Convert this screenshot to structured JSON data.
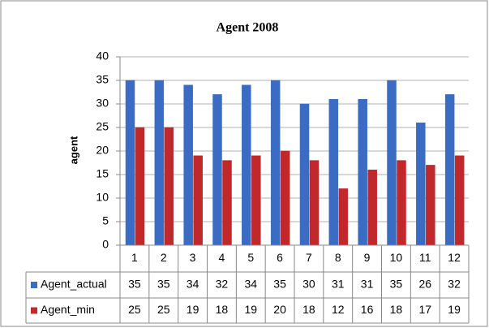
{
  "chart_data": {
    "type": "bar",
    "title": "Agent 2008",
    "y_label": "agent",
    "categories": [
      "1",
      "2",
      "3",
      "4",
      "5",
      "6",
      "7",
      "8",
      "9",
      "10",
      "11",
      "12"
    ],
    "series": [
      {
        "name": "Agent_actual",
        "color": "#3b6cc4",
        "values": [
          35,
          35,
          34,
          32,
          34,
          35,
          30,
          31,
          31,
          35,
          26,
          32
        ]
      },
      {
        "name": "Agent_min",
        "color": "#c0282b",
        "values": [
          25,
          25,
          19,
          18,
          19,
          20,
          18,
          12,
          16,
          18,
          17,
          19
        ]
      }
    ],
    "ylim": [
      0,
      40
    ],
    "yticks": [
      0,
      5,
      10,
      15,
      20,
      25,
      30,
      35,
      40
    ],
    "grid": true
  }
}
